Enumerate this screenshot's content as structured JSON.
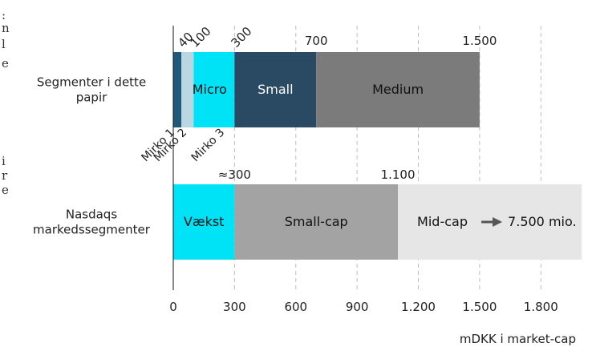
{
  "chart_data": {
    "type": "bar",
    "orientation": "horizontal",
    "stacked": true,
    "xlabel": "mDKK i market-cap",
    "xlim": [
      0,
      2000
    ],
    "xticks": [
      0,
      300,
      600,
      900,
      1200,
      1500,
      1800
    ],
    "xtick_labels": [
      "0",
      "300",
      "600",
      "900",
      "1.200",
      "1.500",
      "1.800"
    ],
    "grid": "vertical dashed",
    "categories": [
      "Segmenter i dette papir",
      "Nasdaqs markedssegmenter"
    ],
    "rows": [
      {
        "label": "Segmenter i dette papir",
        "segments": [
          {
            "name": "Mirko 1",
            "start": 0,
            "end": 40,
            "color": "#1f5a7a",
            "text": ""
          },
          {
            "name": "Mirko 2",
            "start": 40,
            "end": 100,
            "color": "#b9d7e3",
            "text": ""
          },
          {
            "name": "Mirko 3",
            "start": 100,
            "end": 300,
            "color": "#00e3f7",
            "text": ""
          },
          {
            "name": "Small",
            "start": 300,
            "end": 700,
            "color": "#2a4a64",
            "text": "Small"
          },
          {
            "name": "Medium",
            "start": 700,
            "end": 1500,
            "color": "#7b7b7b",
            "text": "Medium"
          }
        ],
        "span_label": {
          "text": "Micro",
          "start": 40,
          "end": 300
        },
        "boundary_labels": [
          {
            "value": 40,
            "text": "40"
          },
          {
            "value": 100,
            "text": "100"
          },
          {
            "value": 300,
            "text": "300"
          },
          {
            "value": 700,
            "text": "700"
          },
          {
            "value": 1500,
            "text": "1.500"
          }
        ],
        "segment_names_rotated": [
          "Mirko 1",
          "Mirko 2",
          "Mirko 3"
        ]
      },
      {
        "label": "Nasdaqs markedssegmenter",
        "segments": [
          {
            "name": "Vækst",
            "start": 0,
            "end": 300,
            "color": "#00e3f7",
            "text": "Vækst"
          },
          {
            "name": "Small-cap",
            "start": 300,
            "end": 1100,
            "color": "#a3a3a3",
            "text": "Small-cap"
          },
          {
            "name": "Mid-cap",
            "start": 1100,
            "end": 2000,
            "color": "#e6e6e6",
            "text": "Mid-cap"
          }
        ],
        "boundary_labels": [
          {
            "value": 300,
            "text": "≈300"
          },
          {
            "value": 1100,
            "text": "1.100"
          }
        ],
        "arrow_label": "7.500 mio."
      }
    ],
    "row_labels_lines": [
      [
        "Segmenter i dette",
        "papir"
      ],
      [
        "Nasdaqs",
        "markedssegmenter"
      ]
    ]
  },
  "left_edge_text": [
    ":",
    "n",
    "l",
    "e",
    "i",
    "r",
    "e"
  ]
}
